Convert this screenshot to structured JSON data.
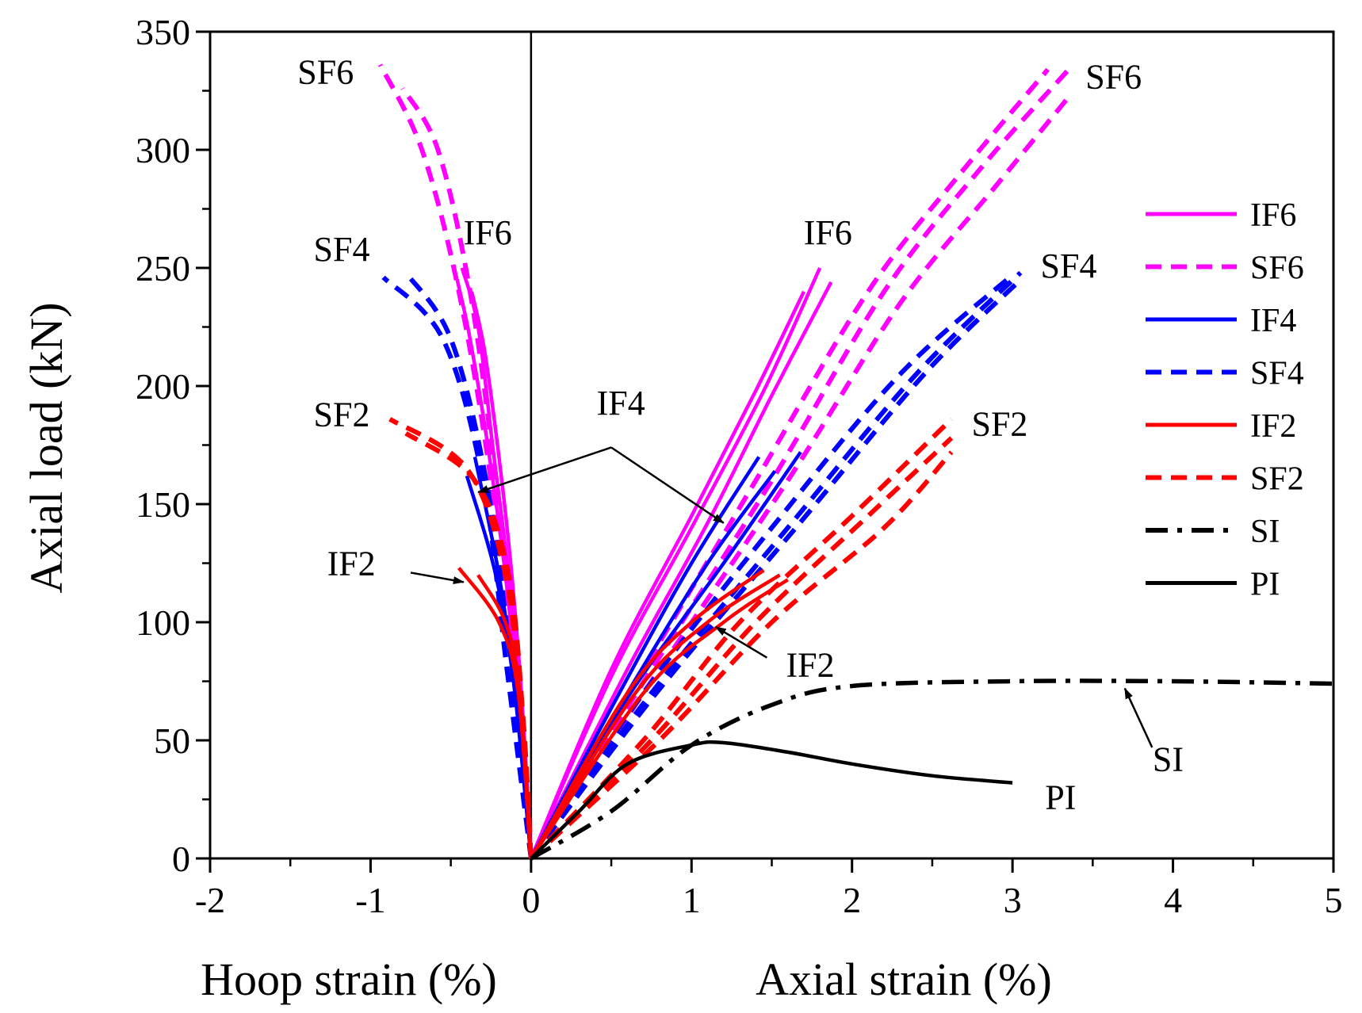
{
  "chart_data": {
    "type": "line",
    "ylabel": "Axial load (kN)",
    "xlabel_left": "Hoop strain (%)",
    "xlabel_right": "Axial strain (%)",
    "xlim": [
      -2,
      5
    ],
    "ylim": [
      0,
      350
    ],
    "x_ticks": [
      -2,
      -1,
      0,
      1,
      2,
      3,
      4,
      5
    ],
    "x_tick_labels": [
      "-2",
      "-1",
      "0",
      "1",
      "2",
      "3",
      "4",
      "5"
    ],
    "y_ticks": [
      0,
      50,
      100,
      150,
      200,
      250,
      300,
      350
    ],
    "y_tick_labels": [
      "0",
      "50",
      "100",
      "150",
      "200",
      "250",
      "300",
      "350"
    ],
    "grid": false,
    "legend_position": "right",
    "series": [
      {
        "name": "IF6",
        "color": "#ff00ff",
        "dash": "solid",
        "curves": [
          [
            [
              0,
              0
            ],
            [
              0.5,
              80
            ],
            [
              1.0,
              145
            ],
            [
              1.4,
              198
            ],
            [
              1.7,
              240
            ]
          ],
          [
            [
              0,
              0
            ],
            [
              0.5,
              77
            ],
            [
              1.0,
              140
            ],
            [
              1.45,
              198
            ],
            [
              1.8,
              250
            ]
          ],
          [
            [
              0,
              0
            ],
            [
              0.6,
              80
            ],
            [
              1.1,
              142
            ],
            [
              1.5,
              196
            ],
            [
              1.87,
              244
            ]
          ],
          [
            [
              0,
              0
            ],
            [
              -0.05,
              60
            ],
            [
              -0.12,
              120
            ],
            [
              -0.2,
              170
            ],
            [
              -0.29,
              215
            ],
            [
              -0.37,
              240
            ]
          ],
          [
            [
              0,
              0
            ],
            [
              -0.06,
              60
            ],
            [
              -0.14,
              120
            ],
            [
              -0.24,
              175
            ],
            [
              -0.33,
              225
            ],
            [
              -0.43,
              250
            ]
          ],
          [
            [
              0,
              0
            ],
            [
              -0.07,
              60
            ],
            [
              -0.16,
              120
            ],
            [
              -0.27,
              175
            ],
            [
              -0.38,
              220
            ],
            [
              -0.46,
              245
            ]
          ]
        ]
      },
      {
        "name": "SF6",
        "color": "#ff00ff",
        "dash": "dashed",
        "curves": [
          [
            [
              0,
              0
            ],
            [
              0.7,
              80
            ],
            [
              1.4,
              160
            ],
            [
              2.1,
              240
            ],
            [
              2.7,
              292
            ],
            [
              3.22,
              334
            ]
          ],
          [
            [
              0,
              0
            ],
            [
              0.75,
              80
            ],
            [
              1.5,
              160
            ],
            [
              2.2,
              240
            ],
            [
              2.8,
              292
            ],
            [
              3.35,
              334
            ]
          ],
          [
            [
              0,
              0
            ],
            [
              0.8,
              80
            ],
            [
              1.6,
              160
            ],
            [
              2.3,
              235
            ],
            [
              2.9,
              285
            ],
            [
              3.37,
              324
            ]
          ],
          [
            [
              0,
              0
            ],
            [
              -0.12,
              80
            ],
            [
              -0.25,
              160
            ],
            [
              -0.45,
              240
            ],
            [
              -0.68,
              300
            ],
            [
              -0.94,
              336
            ]
          ],
          [
            [
              0,
              0
            ],
            [
              -0.1,
              80
            ],
            [
              -0.22,
              160
            ],
            [
              -0.38,
              240
            ],
            [
              -0.58,
              300
            ],
            [
              -0.8,
              326
            ]
          ]
        ]
      },
      {
        "name": "IF4",
        "color": "#0000ff",
        "dash": "solid",
        "curves": [
          [
            [
              0,
              0
            ],
            [
              0.55,
              70
            ],
            [
              1.0,
              125
            ],
            [
              1.42,
              170
            ]
          ],
          [
            [
              0,
              0
            ],
            [
              0.6,
              70
            ],
            [
              1.1,
              125
            ],
            [
              1.52,
              164
            ]
          ],
          [
            [
              0,
              0
            ],
            [
              0.6,
              68
            ],
            [
              1.2,
              125
            ],
            [
              1.68,
              172
            ]
          ],
          [
            [
              0,
              0
            ],
            [
              -0.1,
              70
            ],
            [
              -0.2,
              120
            ],
            [
              -0.35,
              170
            ]
          ],
          [
            [
              0,
              0
            ],
            [
              -0.1,
              70
            ],
            [
              -0.22,
              120
            ],
            [
              -0.4,
              162
            ]
          ]
        ]
      },
      {
        "name": "SF4",
        "color": "#0000ff",
        "dash": "dashed",
        "curves": [
          [
            [
              0,
              0
            ],
            [
              0.7,
              70
            ],
            [
              1.5,
              140
            ],
            [
              2.3,
              205
            ],
            [
              3.0,
              247
            ]
          ],
          [
            [
              0,
              0
            ],
            [
              0.75,
              70
            ],
            [
              1.6,
              140
            ],
            [
              2.4,
              205
            ],
            [
              3.05,
              248
            ]
          ],
          [
            [
              0,
              0
            ],
            [
              0.78,
              70
            ],
            [
              1.65,
              140
            ],
            [
              2.45,
              205
            ],
            [
              3.05,
              245
            ]
          ],
          [
            [
              0,
              0
            ],
            [
              -0.15,
              80
            ],
            [
              -0.3,
              160
            ],
            [
              -0.55,
              220
            ],
            [
              -0.92,
              246
            ]
          ],
          [
            [
              0,
              0
            ],
            [
              -0.12,
              80
            ],
            [
              -0.28,
              160
            ],
            [
              -0.5,
              220
            ],
            [
              -0.78,
              248
            ]
          ]
        ]
      },
      {
        "name": "IF2",
        "color": "#ff0000",
        "dash": "solid",
        "curves": [
          [
            [
              0,
              0
            ],
            [
              0.6,
              70
            ],
            [
              1.0,
              100
            ],
            [
              1.45,
              122
            ]
          ],
          [
            [
              0,
              0
            ],
            [
              0.65,
              70
            ],
            [
              1.1,
              100
            ],
            [
              1.55,
              120
            ]
          ],
          [
            [
              0,
              0
            ],
            [
              0.7,
              70
            ],
            [
              1.2,
              100
            ],
            [
              1.6,
              118
            ]
          ],
          [
            [
              0,
              0
            ],
            [
              -0.08,
              70
            ],
            [
              -0.2,
              100
            ],
            [
              -0.45,
              123
            ]
          ],
          [
            [
              0,
              0
            ],
            [
              -0.07,
              70
            ],
            [
              -0.16,
              100
            ],
            [
              -0.33,
              120
            ]
          ]
        ]
      },
      {
        "name": "SF2",
        "color": "#ff0000",
        "dash": "dashed",
        "curves": [
          [
            [
              0,
              0
            ],
            [
              0.7,
              50
            ],
            [
              1.3,
              100
            ],
            [
              2.0,
              145
            ],
            [
              2.62,
              186
            ]
          ],
          [
            [
              0,
              0
            ],
            [
              0.75,
              50
            ],
            [
              1.4,
              100
            ],
            [
              2.1,
              145
            ],
            [
              2.62,
              178
            ]
          ],
          [
            [
              0,
              0
            ],
            [
              0.8,
              50
            ],
            [
              1.5,
              100
            ],
            [
              2.2,
              140
            ],
            [
              2.62,
              172
            ]
          ],
          [
            [
              0,
              0
            ],
            [
              -0.06,
              60
            ],
            [
              -0.16,
              120
            ],
            [
              -0.4,
              165
            ],
            [
              -0.88,
              186
            ]
          ],
          [
            [
              0,
              0
            ],
            [
              -0.05,
              60
            ],
            [
              -0.14,
              120
            ],
            [
              -0.35,
              160
            ],
            [
              -0.78,
              180
            ]
          ]
        ]
      },
      {
        "name": "SI",
        "color": "#000000",
        "dash": "dashdot",
        "curves": [
          [
            [
              0,
              0
            ],
            [
              0.5,
              20
            ],
            [
              1.0,
              48
            ],
            [
              1.5,
              65
            ],
            [
              2.0,
              73
            ],
            [
              3.0,
              75
            ],
            [
              4.0,
              75
            ],
            [
              5.0,
              74
            ]
          ]
        ]
      },
      {
        "name": "PI",
        "color": "#000000",
        "dash": "solid",
        "curves": [
          [
            [
              0,
              0
            ],
            [
              0.3,
              20
            ],
            [
              0.6,
              40
            ],
            [
              1.0,
              48
            ],
            [
              1.2,
              49
            ],
            [
              1.6,
              45
            ],
            [
              2.0,
              40
            ],
            [
              2.5,
              35
            ],
            [
              3.0,
              32
            ]
          ]
        ]
      }
    ],
    "annotations": [
      {
        "text": "SF6",
        "x": -1.28,
        "y": 328
      },
      {
        "text": "IF6",
        "x": -0.27,
        "y": 260
      },
      {
        "text": "SF4",
        "x": -1.18,
        "y": 253
      },
      {
        "text": "SF2",
        "x": -1.18,
        "y": 183
      },
      {
        "text": "IF4",
        "x": 0.56,
        "y": 188
      },
      {
        "text": "IF2",
        "x": -1.12,
        "y": 120
      },
      {
        "text": "IF6",
        "x": 1.85,
        "y": 260
      },
      {
        "text": "SF6",
        "x": 3.63,
        "y": 326
      },
      {
        "text": "SF4",
        "x": 3.35,
        "y": 246
      },
      {
        "text": "SF2",
        "x": 2.92,
        "y": 179
      },
      {
        "text": "IF2",
        "x": 1.74,
        "y": 77
      },
      {
        "text": "SI",
        "x": 3.97,
        "y": 37
      },
      {
        "text": "PI",
        "x": 3.3,
        "y": 21
      }
    ],
    "arrows": [
      {
        "from": [
          0.5,
          174
        ],
        "to": [
          -0.33,
          155
        ]
      },
      {
        "from": [
          0.5,
          174
        ],
        "to": [
          1.2,
          142
        ]
      },
      {
        "from": [
          -0.75,
          121
        ],
        "to": [
          -0.42,
          117
        ]
      },
      {
        "from": [
          1.47,
          85
        ],
        "to": [
          1.15,
          98
        ]
      },
      {
        "from": [
          3.87,
          47
        ],
        "to": [
          3.7,
          72
        ]
      }
    ]
  }
}
